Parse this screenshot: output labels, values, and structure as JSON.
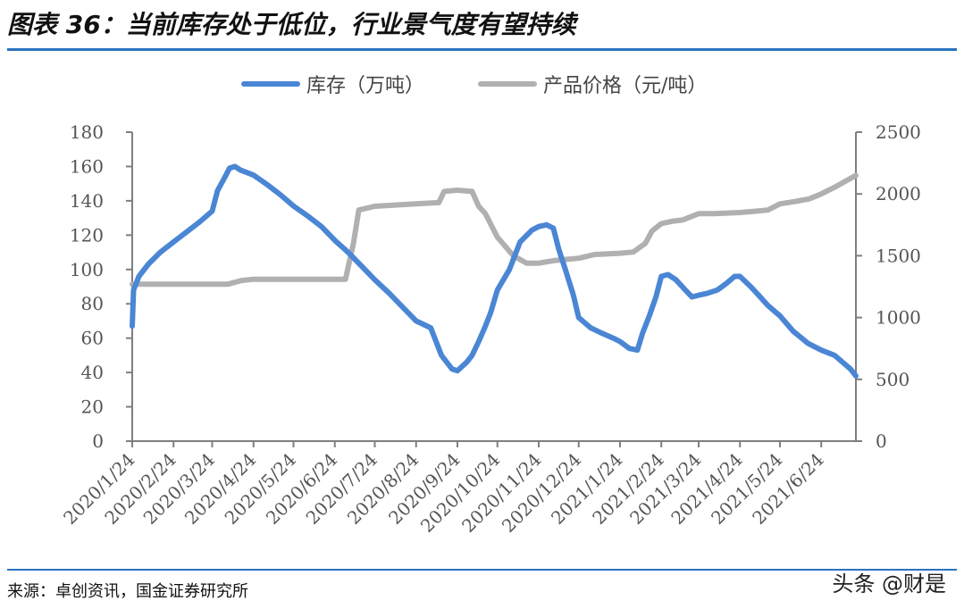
{
  "title": "图表 36：当前库存处于低位，行业景气度有望持续",
  "source": "来源：卓创资讯，国金证券研究所",
  "watermark": "头条 @财是",
  "chart_data": {
    "type": "line",
    "legend_position": "top",
    "grid": false,
    "colors": {
      "inventory": "#4a86d4",
      "price": "#b0b0b0",
      "axis": "#7f7f7f",
      "rule": "#2a74bf"
    },
    "x_tick_labels": [
      "2020/1/24",
      "2020/2/24",
      "2020/3/24",
      "2020/4/24",
      "2020/5/24",
      "2020/6/24",
      "2020/7/24",
      "2020/8/24",
      "2020/9/24",
      "2020/10/24",
      "2020/11/24",
      "2020/12/24",
      "2021/1/24",
      "2021/2/24",
      "2021/3/24",
      "2021/4/24",
      "2021/5/24",
      "2021/6/24"
    ],
    "x_range": [
      "2020/1/24",
      "2021/7/20"
    ],
    "y_left": {
      "range": [
        0,
        180
      ],
      "ticks": [
        0,
        20,
        40,
        60,
        80,
        100,
        120,
        140,
        160,
        180
      ]
    },
    "y_right": {
      "range": [
        0,
        2500
      ],
      "ticks": [
        0,
        500,
        1000,
        1500,
        2000,
        2500
      ]
    },
    "series": [
      {
        "name": "库存（万吨）",
        "axis": "left",
        "x": [
          "2020/1/24",
          "2020/1/25",
          "2020/1/29",
          "2020/2/5",
          "2020/2/14",
          "2020/2/24",
          "2020/3/5",
          "2020/3/15",
          "2020/3/24",
          "2020/3/28",
          "2020/4/2",
          "2020/4/6",
          "2020/4/10",
          "2020/4/14",
          "2020/4/24",
          "2020/5/5",
          "2020/5/15",
          "2020/5/24",
          "2020/6/4",
          "2020/6/14",
          "2020/6/24",
          "2020/7/4",
          "2020/7/14",
          "2020/7/24",
          "2020/8/4",
          "2020/8/14",
          "2020/8/24",
          "2020/9/4",
          "2020/9/12",
          "2020/9/20",
          "2020/9/24",
          "2020/10/1",
          "2020/10/5",
          "2020/10/10",
          "2020/10/15",
          "2020/10/19",
          "2020/10/24",
          "2020/11/2",
          "2020/11/10",
          "2020/11/19",
          "2020/11/24",
          "2020/11/30",
          "2020/12/5",
          "2020/12/9",
          "2020/12/14",
          "2020/12/20",
          "2020/12/24",
          "2021/1/2",
          "2021/1/10",
          "2021/1/19",
          "2021/1/24",
          "2021/1/31",
          "2021/2/6",
          "2021/2/10",
          "2021/2/15",
          "2021/2/20",
          "2021/2/24",
          "2021/3/1",
          "2021/3/7",
          "2021/3/14",
          "2021/3/19",
          "2021/3/24",
          "2021/3/30",
          "2021/4/7",
          "2021/4/14",
          "2021/4/20",
          "2021/4/24",
          "2021/5/2",
          "2021/5/8",
          "2021/5/15",
          "2021/5/24",
          "2021/6/3",
          "2021/6/14",
          "2021/6/24",
          "2021/7/4",
          "2021/7/10",
          "2021/7/16",
          "2021/7/20"
        ],
        "values": [
          67,
          88,
          96,
          103,
          110,
          116,
          122,
          128,
          134,
          146,
          153,
          159,
          160,
          158,
          155,
          149,
          143,
          137,
          131,
          125,
          117,
          110,
          102,
          94,
          86,
          78,
          70,
          66,
          50,
          42,
          41,
          46,
          50,
          58,
          67,
          75,
          88,
          100,
          116,
          123,
          125,
          126,
          124,
          112,
          100,
          85,
          72,
          66,
          63,
          60,
          58,
          54,
          53,
          63,
          73,
          84,
          96,
          97,
          94,
          88,
          84,
          85,
          86,
          88,
          92,
          96,
          96,
          90,
          85,
          79,
          73,
          64,
          57,
          53,
          50,
          46,
          42,
          38
        ]
      },
      {
        "name": "产品价格（元/吨）",
        "axis": "right",
        "x": [
          "2020/1/24",
          "2020/2/24",
          "2020/3/24",
          "2020/4/5",
          "2020/4/15",
          "2020/4/24",
          "2020/5/24",
          "2020/6/24",
          "2020/7/2",
          "2020/7/8",
          "2020/7/12",
          "2020/7/24",
          "2020/8/24",
          "2020/9/10",
          "2020/9/14",
          "2020/9/24",
          "2020/10/5",
          "2020/10/10",
          "2020/10/15",
          "2020/10/24",
          "2020/11/5",
          "2020/11/15",
          "2020/11/24",
          "2020/12/5",
          "2020/12/24",
          "2021/1/5",
          "2021/1/24",
          "2021/2/3",
          "2021/2/12",
          "2021/2/17",
          "2021/2/24",
          "2021/3/5",
          "2021/3/12",
          "2021/3/24",
          "2021/4/5",
          "2021/4/24",
          "2021/5/5",
          "2021/5/15",
          "2021/5/24",
          "2021/6/5",
          "2021/6/15",
          "2021/6/24",
          "2021/7/5",
          "2021/7/15",
          "2021/7/20"
        ],
        "values": [
          1270,
          1270,
          1270,
          1270,
          1300,
          1310,
          1310,
          1310,
          1310,
          1600,
          1870,
          1900,
          1920,
          1930,
          2020,
          2030,
          2020,
          1900,
          1840,
          1650,
          1500,
          1440,
          1440,
          1460,
          1480,
          1510,
          1520,
          1530,
          1600,
          1700,
          1760,
          1780,
          1790,
          1840,
          1840,
          1850,
          1860,
          1870,
          1920,
          1940,
          1960,
          2000,
          2060,
          2120,
          2150
        ]
      }
    ]
  }
}
